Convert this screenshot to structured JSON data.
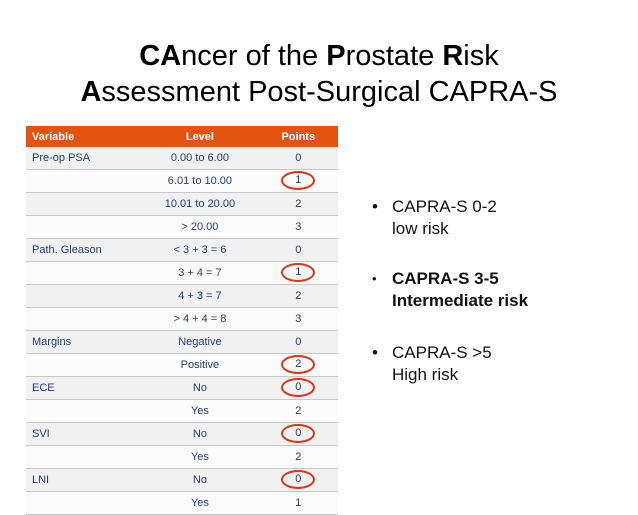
{
  "title": {
    "line1": {
      "a_bold": "CA",
      "a_rest": "ncer of the ",
      "b_bold": "P",
      "b_rest": "rostate ",
      "c_bold": "R",
      "c_rest": "isk"
    },
    "line2": {
      "a_bold": "A",
      "a_rest": "ssessment Post-Surgical CAPRA-S"
    }
  },
  "table": {
    "headers": [
      "Variable",
      "Level",
      "Points"
    ],
    "rows": [
      {
        "variable": "Pre-op PSA",
        "level": "0.00 to 6.00",
        "points": "0",
        "circled": false
      },
      {
        "variable": "",
        "level": "6.01 to 10.00",
        "points": "1",
        "circled": true
      },
      {
        "variable": "",
        "level": "10.01 to 20.00",
        "points": "2",
        "circled": false
      },
      {
        "variable": "",
        "level": "> 20.00",
        "points": "3",
        "circled": false
      },
      {
        "variable": "Path. Gleason",
        "level": "< 3 + 3 = 6",
        "points": "0",
        "circled": false
      },
      {
        "variable": "",
        "level": "3 + 4 = 7",
        "points": "1",
        "circled": true
      },
      {
        "variable": "",
        "level": "4 + 3 = 7",
        "points": "2",
        "circled": false
      },
      {
        "variable": "",
        "level": "> 4 + 4 = 8",
        "points": "3",
        "circled": false
      },
      {
        "variable": "Margins",
        "level": "Negative",
        "points": "0",
        "circled": false
      },
      {
        "variable": "",
        "level": "Positive",
        "points": "2",
        "circled": true
      },
      {
        "variable": "ECE",
        "level": "No",
        "points": "0",
        "circled": true
      },
      {
        "variable": "",
        "level": "Yes",
        "points": "2",
        "circled": false
      },
      {
        "variable": "SVI",
        "level": "No",
        "points": "0",
        "circled": true
      },
      {
        "variable": "",
        "level": "Yes",
        "points": "2",
        "circled": false
      },
      {
        "variable": "LNI",
        "level": "No",
        "points": "0",
        "circled": true
      },
      {
        "variable": "",
        "level": "Yes",
        "points": "1",
        "circled": false
      }
    ]
  },
  "bullets": [
    {
      "line1": "CAPRA-S 0-2",
      "line2": "low risk"
    },
    {
      "line1": "CAPRA-S 3-5",
      "line2": "Intermediate risk"
    },
    {
      "line1": "CAPRA-S >5",
      "line2": "High risk"
    }
  ],
  "colors": {
    "header_bg": "#e0540f",
    "circle": "#d9361a",
    "cell_text": "#1f3d7a"
  }
}
